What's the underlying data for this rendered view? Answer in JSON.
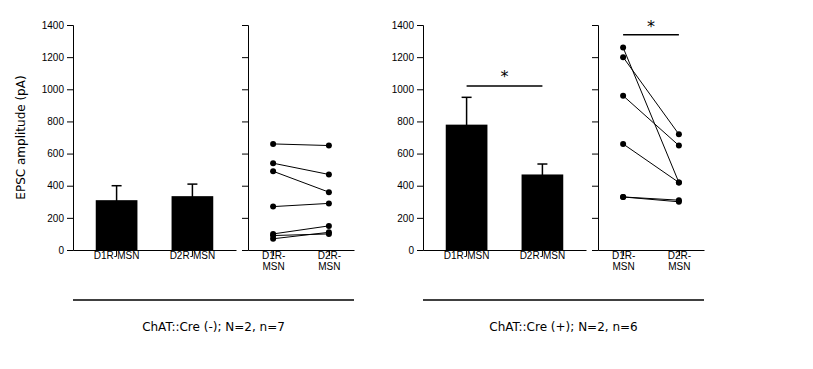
{
  "chart_data": [
    {
      "type": "bar",
      "categories": [
        "D1R-MSN",
        "D2R-MSN"
      ],
      "values": [
        310,
        335
      ],
      "errors": [
        90,
        75
      ],
      "ylabel": "EPSC amplitude (pA)",
      "xlabel": "ChAT::Cre (-); N=2, n=7",
      "color": "#000000",
      "ylim": [
        0,
        1400
      ],
      "yticks": [
        0,
        200,
        400,
        600,
        800,
        1000,
        1200,
        1400
      ]
    },
    {
      "type": "line",
      "categories": [
        "D1R-\nMSN",
        "D2R-\nMSN"
      ],
      "series": [
        {
          "values": [
            660,
            650
          ]
        },
        {
          "values": [
            540,
            470
          ]
        },
        {
          "values": [
            490,
            360
          ]
        },
        {
          "values": [
            270,
            290
          ]
        },
        {
          "values": [
            100,
            150
          ]
        },
        {
          "values": [
            90,
            100
          ]
        },
        {
          "values": [
            70,
            110
          ]
        }
      ],
      "color": "#000000",
      "marker": "circle",
      "tick_labels": "x",
      "ylim": [
        0,
        1400
      ],
      "yticks": [
        0,
        200,
        400,
        600,
        800,
        1000,
        1200,
        1400
      ]
    },
    {
      "type": "bar",
      "categories": [
        "D1R-MSN",
        "D2R-MSN"
      ],
      "values": [
        780,
        470
      ],
      "errors": [
        170,
        65
      ],
      "xlabel": "ChAT::Cre (+); N=2, n=6",
      "color": "#000000",
      "ylim": [
        0,
        1400
      ],
      "yticks": [
        0,
        200,
        400,
        600,
        800,
        1000,
        1200,
        1400
      ],
      "annotations": [
        {
          "text": "*",
          "y": 1045,
          "bracket_y": 1020
        }
      ]
    },
    {
      "type": "line",
      "categories": [
        "D1R-\nMSN",
        "D2R-\nMSN"
      ],
      "series": [
        {
          "values": [
            1260,
            420
          ]
        },
        {
          "values": [
            1200,
            720
          ]
        },
        {
          "values": [
            960,
            650
          ]
        },
        {
          "values": [
            660,
            420
          ]
        },
        {
          "values": [
            330,
            310
          ]
        },
        {
          "values": [
            330,
            300
          ]
        }
      ],
      "color": "#000000",
      "marker": "circle",
      "tick_labels": "x",
      "ylim": [
        0,
        1400
      ],
      "yticks": [
        0,
        200,
        400,
        600,
        800,
        1000,
        1200,
        1400
      ],
      "annotations": [
        {
          "text": "*",
          "y": 1355,
          "bracket_y": 1340
        }
      ]
    }
  ]
}
